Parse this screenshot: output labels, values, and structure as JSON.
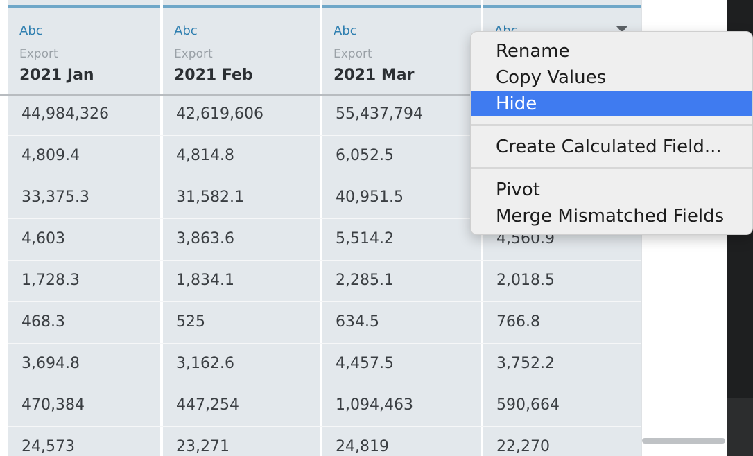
{
  "columns": [
    {
      "type": "Abc",
      "source": "Export",
      "name": "2021 Jan"
    },
    {
      "type": "Abc",
      "source": "Export",
      "name": "2021 Feb"
    },
    {
      "type": "Abc",
      "source": "Export",
      "name": "2021 Mar"
    },
    {
      "type": "Abc",
      "source": "",
      "name": ""
    }
  ],
  "rows": [
    [
      "44,984,326",
      "42,619,606",
      "55,437,794",
      ""
    ],
    [
      "4,809.4",
      "4,814.8",
      "6,052.5",
      ""
    ],
    [
      "33,375.3",
      "31,582.1",
      "40,951.5",
      ""
    ],
    [
      "4,603",
      "3,863.6",
      "5,514.2",
      "4,560.9"
    ],
    [
      "1,728.3",
      "1,834.1",
      "2,285.1",
      "2,018.5"
    ],
    [
      "468.3",
      "525",
      "634.5",
      "766.8"
    ],
    [
      "3,694.8",
      "3,162.6",
      "4,457.5",
      "3,752.2"
    ],
    [
      "470,384",
      "447,254",
      "1,094,463",
      "590,664"
    ],
    [
      "24,573",
      "23,271",
      "24,819",
      "22,270"
    ]
  ],
  "context_menu": {
    "items": [
      "Rename",
      "Copy Values",
      "Hide",
      "Create Calculated Field...",
      "Pivot",
      "Merge Mismatched Fields"
    ],
    "selected": "Hide"
  }
}
